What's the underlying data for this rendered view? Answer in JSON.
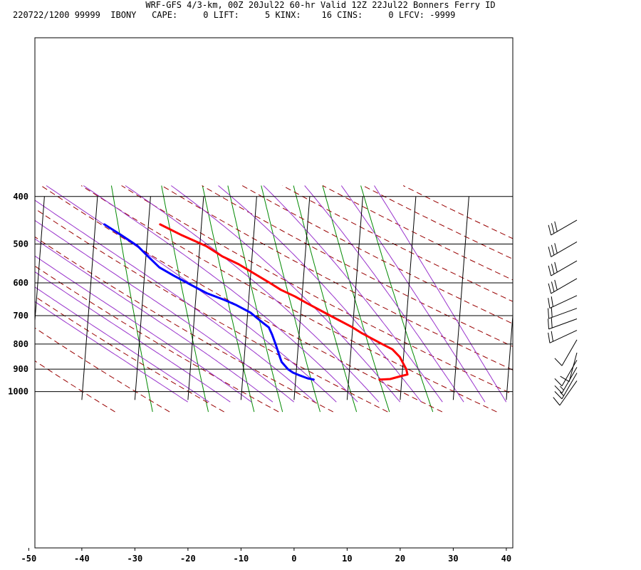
{
  "chart_data": {
    "type": "line",
    "title": "WRF-GFS 4/3-km, 00Z 20Jul22 60-hr Valid 12Z 22Jul22 Bonners Ferry ID",
    "subtitle": "220722/1200 99999  IBONY   CAPE:     0 LIFT:     5 KINX:    16 CINS:     0 LFCV: -9999",
    "xlabel": "",
    "ylabel": "",
    "x_ticks": [
      "-50",
      "-40",
      "-30",
      "-20",
      "-10",
      "0",
      "10",
      "20",
      "30",
      "40"
    ],
    "y_ticks": [
      "400",
      "500",
      "600",
      "700",
      "800",
      "900",
      "1000"
    ],
    "xlim": [
      -50,
      40
    ],
    "ylim": [
      1040,
      400
    ],
    "y_scale": "skew-t log-p",
    "skew_x_per_decade_log_p": 53,
    "grid": true,
    "colors": {
      "temperature": "#ff0000",
      "dewpoint": "#0000ff",
      "dry_adiabats": "#990000",
      "moist_adiabats": "#9933cc",
      "mixing_ratio": "#008800",
      "grid": "#000000"
    },
    "series": [
      {
        "name": "",
        "color": "#ff0000",
        "points": [
          {
            "p": 945,
            "t": 15.8
          },
          {
            "p": 943,
            "t": 17.8
          },
          {
            "p": 932,
            "t": 19.5
          },
          {
            "p": 923,
            "t": 21.0
          },
          {
            "p": 900,
            "t": 20.7
          },
          {
            "p": 850,
            "t": 19.3
          },
          {
            "p": 820,
            "t": 17.8
          },
          {
            "p": 800,
            "t": 15.8
          },
          {
            "p": 780,
            "t": 13.8
          },
          {
            "p": 760,
            "t": 11.8
          },
          {
            "p": 740,
            "t": 10.0
          },
          {
            "p": 700,
            "t": 5.6
          },
          {
            "p": 660,
            "t": 1.0
          },
          {
            "p": 640,
            "t": -1.3
          },
          {
            "p": 620,
            "t": -4.1
          },
          {
            "p": 600,
            "t": -6.3
          },
          {
            "p": 570,
            "t": -9.9
          },
          {
            "p": 550,
            "t": -12.4
          },
          {
            "p": 530,
            "t": -15.6
          },
          {
            "p": 505,
            "t": -18.8
          },
          {
            "p": 480,
            "t": -23.5
          },
          {
            "p": 456,
            "t": -27.8
          }
        ]
      },
      {
        "name": "",
        "color": "#0000ff",
        "points": [
          {
            "p": 945,
            "t": 3.4
          },
          {
            "p": 940,
            "t": 2.3
          },
          {
            "p": 925,
            "t": 0.5
          },
          {
            "p": 915,
            "t": -0.6
          },
          {
            "p": 900,
            "t": -1.6
          },
          {
            "p": 870,
            "t": -2.9
          },
          {
            "p": 850,
            "t": -3.3
          },
          {
            "p": 800,
            "t": -4.3
          },
          {
            "p": 765,
            "t": -5.1
          },
          {
            "p": 740,
            "t": -5.8
          },
          {
            "p": 720,
            "t": -7.3
          },
          {
            "p": 690,
            "t": -9.5
          },
          {
            "p": 665,
            "t": -12.4
          },
          {
            "p": 650,
            "t": -14.6
          },
          {
            "p": 630,
            "t": -18.0
          },
          {
            "p": 605,
            "t": -21.2
          },
          {
            "p": 580,
            "t": -24.5
          },
          {
            "p": 558,
            "t": -27.3
          },
          {
            "p": 530,
            "t": -29.6
          },
          {
            "p": 505,
            "t": -31.7
          },
          {
            "p": 480,
            "t": -34.9
          },
          {
            "p": 456,
            "t": -38.3
          }
        ]
      }
    ],
    "wind_barbs_knots": [
      {
        "p": 456,
        "dir": 240,
        "spd": 30
      },
      {
        "p": 505,
        "dir": 240,
        "spd": 30
      },
      {
        "p": 552,
        "dir": 240,
        "spd": 30
      },
      {
        "p": 600,
        "dir": 240,
        "spd": 30
      },
      {
        "p": 650,
        "dir": 245,
        "spd": 20
      },
      {
        "p": 690,
        "dir": 250,
        "spd": 20
      },
      {
        "p": 725,
        "dir": 250,
        "spd": 20
      },
      {
        "p": 765,
        "dir": 245,
        "spd": 20
      },
      {
        "p": 800,
        "dir": 210,
        "spd": 10
      },
      {
        "p": 850,
        "dir": 195,
        "spd": 10
      },
      {
        "p": 880,
        "dir": 210,
        "spd": 10
      },
      {
        "p": 910,
        "dir": 210,
        "spd": 15
      },
      {
        "p": 935,
        "dir": 210,
        "spd": 15
      },
      {
        "p": 970,
        "dir": 215,
        "spd": 10
      }
    ]
  }
}
